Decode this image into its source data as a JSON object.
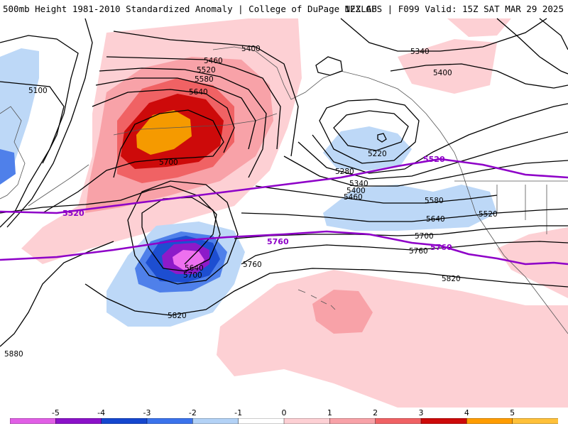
{
  "header": {
    "title": "500mb Height 1981-2010 Standardized Anomaly | College of DuPage NEXLAB",
    "valid": "12Z GFS | F099 Valid: 15Z SAT MAR 29 2025"
  },
  "legend": {
    "ticks": [
      "-5",
      "-4",
      "-3",
      "-2",
      "-1",
      "0",
      "1",
      "2",
      "3",
      "4",
      "5"
    ],
    "colors": [
      "#e15fe6",
      "#8b12c9",
      "#1547cf",
      "#3b73ec",
      "#b3d2f6",
      "#ffffff",
      "#fdd0d4",
      "#f8a2a8",
      "#f06264",
      "#cd0a0a",
      "#ff9d00",
      "#ffc13a"
    ]
  },
  "anomaly_colors": {
    "pos1": "#fdd0d4",
    "pos2": "#f8a2a8",
    "pos3": "#f06264",
    "pos4": "#cd0a0a",
    "pos5": "#f59a00",
    "neg1": "#bdd8f7",
    "neg2": "#4f80ea",
    "neg3": "#1d4ed1",
    "neg4": "#8d1ac9",
    "neg5": "#ee70ef",
    "reference_line": "#8e00c8"
  },
  "contour_labels": [
    {
      "id": "5100",
      "text": "5100"
    },
    {
      "id": "5400-n",
      "text": "5400"
    },
    {
      "id": "5460",
      "text": "5460"
    },
    {
      "id": "5520-n",
      "text": "5520"
    },
    {
      "id": "5580-n",
      "text": "5580"
    },
    {
      "id": "5640-n",
      "text": "5640"
    },
    {
      "id": "5700-n",
      "text": "5700"
    },
    {
      "id": "5340-ne",
      "text": "5340"
    },
    {
      "id": "5400-ne",
      "text": "5400"
    },
    {
      "id": "5220",
      "text": "5220"
    },
    {
      "id": "5280",
      "text": "5280"
    },
    {
      "id": "5340-e",
      "text": "5340"
    },
    {
      "id": "5400-e",
      "text": "5400"
    },
    {
      "id": "5460-e",
      "text": "5460"
    },
    {
      "id": "5580-e",
      "text": "5580"
    },
    {
      "id": "5520-e",
      "text": "5520"
    },
    {
      "id": "5640-e",
      "text": "5640"
    },
    {
      "id": "5700-e",
      "text": "5700"
    },
    {
      "id": "5760-e",
      "text": "5760"
    },
    {
      "id": "5820-e",
      "text": "5820"
    },
    {
      "id": "5640-low",
      "text": "5640"
    },
    {
      "id": "5700-low",
      "text": "5700"
    },
    {
      "id": "5760-low",
      "text": "5760"
    },
    {
      "id": "5820-s",
      "text": "5820"
    },
    {
      "id": "5880",
      "text": "5880"
    }
  ],
  "reference_labels": [
    {
      "id": "ref-5520-w",
      "text": "5520"
    },
    {
      "id": "ref-5520-e",
      "text": "5520"
    },
    {
      "id": "ref-5760-c",
      "text": "5760"
    },
    {
      "id": "ref-5760-e",
      "text": "5760"
    }
  ]
}
